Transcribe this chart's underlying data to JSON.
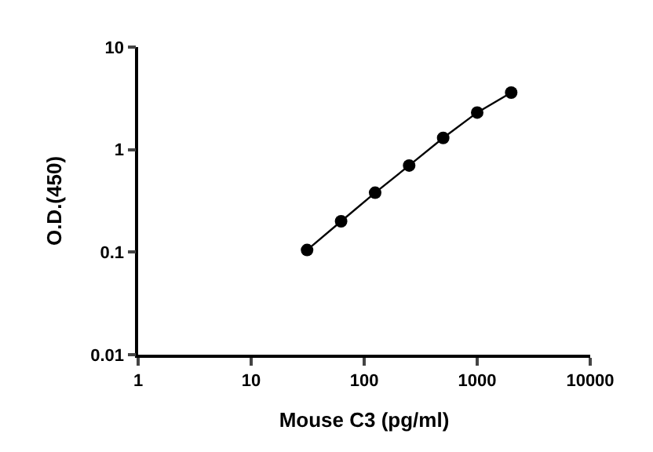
{
  "chart_data": {
    "type": "line",
    "xlabel": "Mouse C3 (pg/ml)",
    "ylabel": "O.D.(450)",
    "x": [
      31.25,
      62.5,
      125,
      250,
      500,
      1000,
      2000
    ],
    "series": [
      {
        "color": "#000000",
        "values": [
          0.105,
          0.2,
          0.38,
          0.7,
          1.3,
          2.3,
          3.6
        ]
      }
    ],
    "log": "xy",
    "xlim": [
      1,
      10000
    ],
    "ylim": [
      0.01,
      10
    ],
    "xticks": [
      1,
      10,
      100,
      1000,
      10000
    ],
    "yticks": [
      0.01,
      0.1,
      1,
      10
    ],
    "marker": "circle",
    "line_style": "solid",
    "legend": false
  }
}
